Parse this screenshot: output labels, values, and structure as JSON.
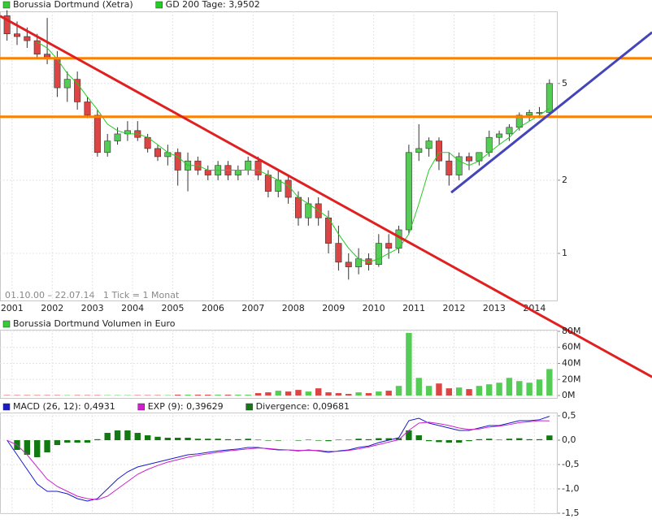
{
  "chart_data": [
    {
      "type": "candlestick",
      "subtitle": "01.10.00 – 22.07.14   1 Tick = 1 Monat",
      "x": [
        2000.875,
        2001.125,
        2001.375,
        2001.625,
        2001.875,
        2002.125,
        2002.375,
        2002.625,
        2002.875,
        2003.125,
        2003.375,
        2003.625,
        2003.875,
        2004.125,
        2004.375,
        2004.625,
        2004.875,
        2005.125,
        2005.375,
        2005.625,
        2005.875,
        2006.125,
        2006.375,
        2006.625,
        2006.875,
        2007.125,
        2007.375,
        2007.625,
        2007.875,
        2008.125,
        2008.375,
        2008.625,
        2008.875,
        2009.125,
        2009.375,
        2009.625,
        2009.875,
        2010.125,
        2010.375,
        2010.625,
        2010.875,
        2011.125,
        2011.375,
        2011.625,
        2011.875,
        2012.125,
        2012.375,
        2012.625,
        2012.875,
        2013.125,
        2013.375,
        2013.625,
        2013.875,
        2014.125,
        2014.375
      ],
      "series": [
        {
          "name": "Borussia Dortmund (Xetra)",
          "color": "#33cc33",
          "up_color": "#55cc55",
          "down_color": "#dd4444",
          "open": [
            9.5,
            8.0,
            7.8,
            7.5,
            6.6,
            6.4,
            4.8,
            5.2,
            4.2,
            3.7,
            2.6,
            2.9,
            3.1,
            3.2,
            3.0,
            2.7,
            2.5,
            2.6,
            2.2,
            2.4,
            2.2,
            2.1,
            2.3,
            2.1,
            2.2,
            2.4,
            2.1,
            1.8,
            2.0,
            1.7,
            1.4,
            1.6,
            1.4,
            1.1,
            0.92,
            0.88,
            0.95,
            0.9,
            1.1,
            1.05,
            1.25,
            2.6,
            2.7,
            2.9,
            2.4,
            2.1,
            2.5,
            2.4,
            2.6,
            3.0,
            3.1,
            3.3,
            3.7,
            3.8,
            3.8
          ],
          "high": [
            10,
            9.0,
            8.5,
            8.0,
            9.3,
            6.8,
            5.6,
            5.6,
            4.4,
            3.9,
            3.1,
            3.3,
            3.5,
            3.5,
            3.1,
            2.8,
            2.8,
            2.7,
            2.6,
            2.5,
            2.3,
            2.4,
            2.4,
            2.3,
            2.5,
            2.5,
            2.2,
            2.2,
            2.1,
            1.8,
            1.7,
            1.7,
            1.5,
            1.3,
            1.0,
            1.05,
            1.0,
            1.2,
            1.2,
            1.3,
            2.8,
            3.4,
            3.0,
            3.0,
            2.6,
            2.6,
            2.6,
            2.6,
            3.2,
            3.2,
            3.4,
            3.8,
            3.9,
            4.0,
            5.2
          ],
          "low": [
            7.5,
            7.2,
            7.0,
            6.3,
            6.0,
            4.4,
            4.2,
            3.9,
            3.6,
            2.5,
            2.5,
            2.8,
            2.9,
            2.9,
            2.6,
            2.4,
            2.3,
            1.9,
            1.8,
            2.1,
            2.0,
            2.0,
            2.0,
            2.0,
            2.1,
            2.0,
            1.7,
            1.7,
            1.6,
            1.3,
            1.3,
            1.3,
            1.0,
            0.85,
            0.78,
            0.82,
            0.85,
            0.88,
            0.95,
            1.0,
            1.2,
            2.4,
            2.5,
            2.2,
            1.9,
            2.0,
            2.2,
            2.3,
            2.5,
            2.8,
            2.9,
            3.2,
            3.5,
            3.6,
            3.7
          ],
          "close": [
            8.0,
            7.8,
            7.5,
            6.6,
            6.4,
            4.8,
            5.2,
            4.2,
            3.7,
            2.6,
            2.9,
            3.1,
            3.2,
            3.0,
            2.7,
            2.5,
            2.6,
            2.2,
            2.4,
            2.2,
            2.1,
            2.3,
            2.1,
            2.2,
            2.4,
            2.1,
            1.8,
            2.0,
            1.7,
            1.4,
            1.6,
            1.4,
            1.1,
            0.92,
            0.88,
            0.95,
            0.9,
            1.1,
            1.05,
            1.25,
            2.6,
            2.7,
            2.9,
            2.4,
            2.1,
            2.5,
            2.4,
            2.6,
            3.0,
            3.1,
            3.3,
            3.7,
            3.8,
            3.8,
            5.0
          ]
        },
        {
          "name": "GD 200 Tage: 3,9502",
          "color": "#22cc22",
          "values": [
            null,
            null,
            null,
            7.4,
            7.0,
            6.3,
            5.5,
            5.0,
            4.4,
            3.9,
            3.4,
            3.2,
            3.1,
            3.1,
            3.0,
            2.8,
            2.6,
            2.5,
            2.3,
            2.3,
            2.2,
            2.2,
            2.2,
            2.2,
            2.2,
            2.2,
            2.1,
            2.0,
            1.9,
            1.7,
            1.6,
            1.5,
            1.4,
            1.2,
            1.05,
            0.95,
            0.92,
            0.95,
            1.0,
            1.05,
            1.2,
            1.6,
            2.2,
            2.6,
            2.6,
            2.4,
            2.3,
            2.4,
            2.6,
            2.8,
            3.0,
            3.3,
            3.5,
            3.7,
            3.95
          ]
        }
      ],
      "xlim": [
        2000.7,
        2014.58
      ],
      "xticks": [
        2001,
        2002,
        2003,
        2004,
        2005,
        2006,
        2007,
        2008,
        2009,
        2010,
        2011,
        2012,
        2013,
        2014
      ],
      "ylim": [
        0.64,
        9.9
      ],
      "yticks": [
        1,
        2,
        5
      ],
      "log_scale": true,
      "grid": true,
      "hlines": [
        {
          "value": 6.35,
          "color": "#ff8000"
        },
        {
          "value": 3.65,
          "color": "#ff8000"
        }
      ],
      "trend_lines": [
        {
          "color": "#e02020",
          "x": [
            2000.7,
            2016.93
          ],
          "y": [
            9.48,
            0.31
          ]
        },
        {
          "color": "#4444bb",
          "x": [
            2011.93,
            2016.93
          ],
          "y": [
            1.78,
            8.12
          ]
        }
      ]
    },
    {
      "type": "bar",
      "series": [
        {
          "name": "Borussia Dortmund Volumen in Euro",
          "color": "#33cc33",
          "values": [
            500000,
            500000,
            500000,
            500000,
            500000,
            500000,
            500000,
            500000,
            500000,
            500000,
            500000,
            500000,
            500000,
            500000,
            500000,
            500000,
            500000,
            1000000,
            1000000,
            1000000,
            1000000,
            1000000,
            1000000,
            1000000,
            1000000,
            3000000,
            4000000,
            6000000,
            5000000,
            7000000,
            5000000,
            9000000,
            4000000,
            3000000,
            2000000,
            4000000,
            3000000,
            5000000,
            6000000,
            12000000,
            78000000,
            22000000,
            12000000,
            15000000,
            9000000,
            10000000,
            8000000,
            12000000,
            14000000,
            16000000,
            22000000,
            18000000,
            16000000,
            20000000,
            33000000
          ]
        }
      ],
      "x": [
        2000.875,
        2001.125,
        2001.375,
        2001.625,
        2001.875,
        2002.125,
        2002.375,
        2002.625,
        2002.875,
        2003.125,
        2003.375,
        2003.625,
        2003.875,
        2004.125,
        2004.375,
        2004.625,
        2004.875,
        2005.125,
        2005.375,
        2005.625,
        2005.875,
        2006.125,
        2006.375,
        2006.625,
        2006.875,
        2007.125,
        2007.375,
        2007.625,
        2007.875,
        2008.125,
        2008.375,
        2008.625,
        2008.875,
        2009.125,
        2009.375,
        2009.625,
        2009.875,
        2010.125,
        2010.375,
        2010.625,
        2010.875,
        2011.125,
        2011.375,
        2011.625,
        2011.875,
        2012.125,
        2012.375,
        2012.625,
        2012.875,
        2013.125,
        2013.375,
        2013.625,
        2013.875,
        2014.125,
        2014.375
      ],
      "up_color": "#55cc55",
      "down_color": "#dd4444",
      "xlim": [
        2000.7,
        2014.58
      ],
      "ylim": [
        -3000000,
        82000000
      ],
      "yticks": [
        {
          "value": 0,
          "label": "0M"
        },
        {
          "value": 20000000,
          "label": "20M"
        },
        {
          "value": 40000000,
          "label": "40M"
        },
        {
          "value": 60000000,
          "label": "60M"
        },
        {
          "value": 80000000,
          "label": "80M"
        }
      ]
    },
    {
      "type": "line",
      "x": [
        2000.875,
        2001.125,
        2001.375,
        2001.625,
        2001.875,
        2002.125,
        2002.375,
        2002.625,
        2002.875,
        2003.125,
        2003.375,
        2003.625,
        2003.875,
        2004.125,
        2004.375,
        2004.625,
        2004.875,
        2005.125,
        2005.375,
        2005.625,
        2005.875,
        2006.125,
        2006.375,
        2006.625,
        2006.875,
        2007.125,
        2007.375,
        2007.625,
        2007.875,
        2008.125,
        2008.375,
        2008.625,
        2008.875,
        2009.125,
        2009.375,
        2009.625,
        2009.875,
        2010.125,
        2010.375,
        2010.625,
        2010.875,
        2011.125,
        2011.375,
        2011.625,
        2011.875,
        2012.125,
        2012.375,
        2012.625,
        2012.875,
        2013.125,
        2013.375,
        2013.625,
        2013.875,
        2014.125,
        2014.375
      ],
      "series": [
        {
          "name": "MACD (26, 12): 0,4931",
          "color": "#1a1acc",
          "values": [
            0,
            -0.3,
            -0.6,
            -0.9,
            -1.05,
            -1.05,
            -1.1,
            -1.2,
            -1.25,
            -1.2,
            -1.0,
            -0.8,
            -0.65,
            -0.55,
            -0.5,
            -0.45,
            -0.4,
            -0.35,
            -0.3,
            -0.28,
            -0.25,
            -0.22,
            -0.2,
            -0.18,
            -0.15,
            -0.15,
            -0.18,
            -0.2,
            -0.2,
            -0.22,
            -0.2,
            -0.22,
            -0.25,
            -0.22,
            -0.2,
            -0.15,
            -0.12,
            -0.05,
            0,
            0.05,
            0.4,
            0.45,
            0.35,
            0.3,
            0.25,
            0.2,
            0.2,
            0.25,
            0.3,
            0.3,
            0.35,
            0.4,
            0.4,
            0.42,
            0.49
          ]
        },
        {
          "name": "EXP (9): 0,39629",
          "color": "#cc22cc",
          "values": [
            0,
            -0.1,
            -0.3,
            -0.55,
            -0.8,
            -0.95,
            -1.05,
            -1.15,
            -1.2,
            -1.22,
            -1.15,
            -1.0,
            -0.85,
            -0.7,
            -0.6,
            -0.52,
            -0.45,
            -0.4,
            -0.35,
            -0.31,
            -0.28,
            -0.25,
            -0.22,
            -0.2,
            -0.18,
            -0.16,
            -0.17,
            -0.19,
            -0.2,
            -0.21,
            -0.21,
            -0.21,
            -0.23,
            -0.23,
            -0.21,
            -0.18,
            -0.14,
            -0.09,
            -0.04,
            0.01,
            0.2,
            0.35,
            0.37,
            0.34,
            0.3,
            0.25,
            0.22,
            0.23,
            0.27,
            0.29,
            0.32,
            0.36,
            0.38,
            0.4,
            0.396
          ]
        },
        {
          "name": "Divergence: 0,09681",
          "color": "#137a13",
          "type": "bar",
          "values": [
            0,
            -0.2,
            -0.3,
            -0.35,
            -0.25,
            -0.1,
            -0.05,
            -0.05,
            -0.05,
            0.02,
            0.15,
            0.2,
            0.2,
            0.15,
            0.1,
            0.07,
            0.05,
            0.05,
            0.05,
            0.03,
            0.03,
            0.03,
            0.02,
            0.02,
            0.03,
            0.01,
            -0.01,
            -0.01,
            0,
            -0.01,
            0.01,
            -0.01,
            -0.02,
            0.01,
            0.01,
            0.03,
            0.02,
            0.04,
            0.04,
            0.04,
            0.2,
            0.1,
            -0.02,
            -0.04,
            -0.05,
            -0.05,
            -0.02,
            0.02,
            0.03,
            0.01,
            0.03,
            0.04,
            0.02,
            0.02,
            0.097
          ]
        }
      ],
      "xlim": [
        2000.7,
        2014.58
      ],
      "ylim": [
        -1.5,
        0.567
      ],
      "yticks": [
        {
          "value": 0.5,
          "label": "0,5"
        },
        {
          "value": 0,
          "label": "0,0"
        },
        {
          "value": -0.5,
          "label": "-0,5"
        },
        {
          "value": -1,
          "label": "-1,0"
        },
        {
          "value": -1.5,
          "label": "-1,5"
        }
      ]
    }
  ]
}
